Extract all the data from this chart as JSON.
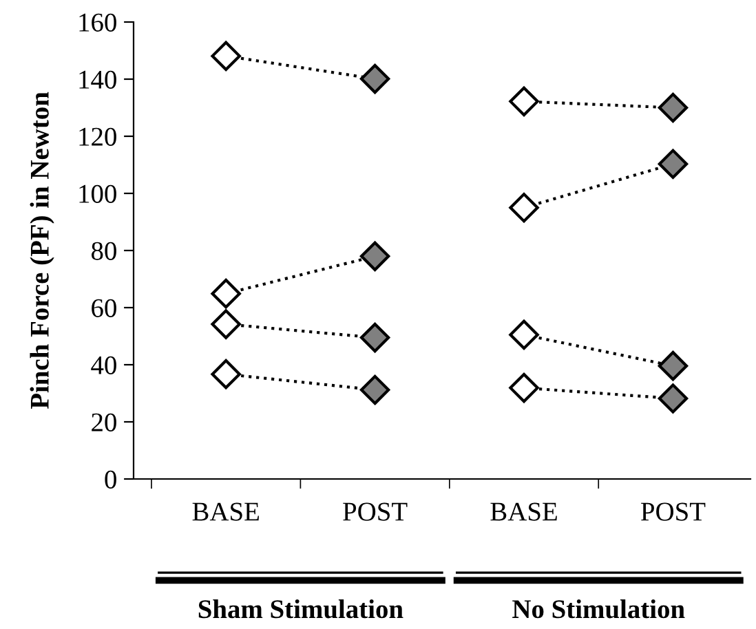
{
  "chart_data": {
    "type": "line",
    "ylabel": "Pinch Force (PF) in Newton",
    "categories": [
      "BASE",
      "POST",
      "BASE",
      "POST"
    ],
    "ylim": [
      0,
      160
    ],
    "yticks": [
      0,
      20,
      40,
      60,
      80,
      100,
      120,
      140,
      160
    ],
    "marker": "diamond",
    "line_style": "dotted",
    "grid": false,
    "legend": false,
    "series": [
      {
        "color": "#000000",
        "colors": [
          "#ffffff",
          "#808080",
          null,
          null
        ],
        "values": [
          148.1,
          140.1,
          null,
          null
        ]
      },
      {
        "color": "#000000",
        "colors": [
          "#ffffff",
          "#808080",
          null,
          null
        ],
        "values": [
          64.9,
          78.0,
          null,
          null
        ]
      },
      {
        "color": "#000000",
        "colors": [
          "#ffffff",
          "#808080",
          null,
          null
        ],
        "values": [
          54.2,
          49.5,
          null,
          null
        ]
      },
      {
        "color": "#000000",
        "colors": [
          "#ffffff",
          "#808080",
          null,
          null
        ],
        "values": [
          36.7,
          31.2,
          null,
          null
        ]
      },
      {
        "color": "#000000",
        "colors": [
          null,
          null,
          "#ffffff",
          "#808080"
        ],
        "values": [
          null,
          null,
          132.2,
          130.0
        ]
      },
      {
        "color": "#000000",
        "colors": [
          null,
          null,
          "#ffffff",
          "#808080"
        ],
        "values": [
          null,
          null,
          95.0,
          110.3
        ]
      },
      {
        "color": "#000000",
        "colors": [
          null,
          null,
          "#ffffff",
          "#808080"
        ],
        "values": [
          null,
          null,
          50.5,
          39.6
        ]
      },
      {
        "color": "#000000",
        "colors": [
          null,
          null,
          "#ffffff",
          "#808080"
        ],
        "values": [
          null,
          null,
          31.9,
          28.2
        ]
      }
    ],
    "annotations": [
      "Sham Stimulation",
      "No Stimulation"
    ]
  }
}
